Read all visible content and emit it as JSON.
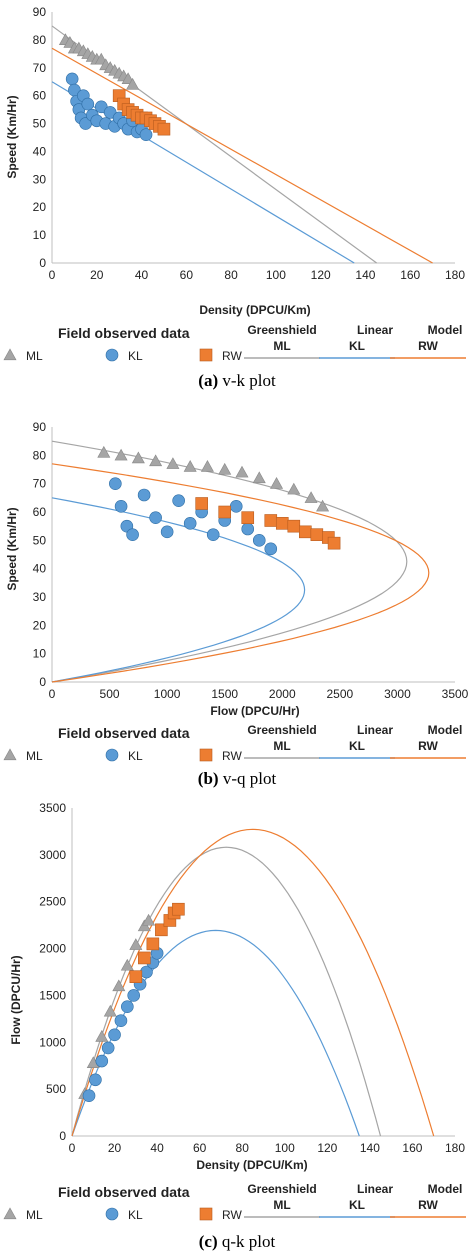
{
  "chart_data": [
    {
      "type": "scatter",
      "caption_label": "(a)",
      "caption_text": "v-k plot",
      "xlabel": "Density (DPCU/Km)",
      "ylabel": "Speed (Km/Hr)",
      "xlim": [
        0,
        180
      ],
      "ylim": [
        0,
        90
      ],
      "xticks": [
        0,
        20,
        40,
        60,
        80,
        100,
        120,
        140,
        160,
        180
      ],
      "yticks": [
        0,
        10,
        20,
        30,
        40,
        50,
        60,
        70,
        80,
        90
      ],
      "series": [
        {
          "name": "ML",
          "kind": "points",
          "marker": "triangle",
          "color": "#a5a5a5",
          "x": [
            6,
            8,
            10,
            12,
            14,
            16,
            18,
            20,
            22,
            24,
            26,
            28,
            30,
            32,
            34,
            36
          ],
          "y": [
            80,
            79,
            77,
            77,
            76,
            75,
            74,
            73,
            73,
            71,
            70,
            69,
            68,
            67,
            66,
            64
          ]
        },
        {
          "name": "KL",
          "kind": "points",
          "marker": "circle",
          "color": "#5b9bd5",
          "x": [
            9,
            10,
            11,
            12,
            13,
            14,
            15,
            16,
            18,
            20,
            22,
            24,
            26,
            28,
            30,
            32,
            34,
            36,
            38,
            40,
            42
          ],
          "y": [
            66,
            62,
            58,
            55,
            52,
            60,
            50,
            57,
            53,
            51,
            56,
            50,
            54,
            49,
            52,
            50,
            48,
            51,
            47,
            48,
            46
          ]
        },
        {
          "name": "RW",
          "kind": "points",
          "marker": "square",
          "color": "#ed7d31",
          "x": [
            30,
            32,
            34,
            36,
            38,
            40,
            42,
            44,
            46,
            48,
            50
          ],
          "y": [
            60,
            57,
            55,
            54,
            53,
            52,
            52,
            51,
            50,
            49,
            48
          ]
        },
        {
          "name": "ML",
          "kind": "line",
          "color": "#a5a5a5",
          "x": [
            0,
            145
          ],
          "y": [
            85,
            0
          ]
        },
        {
          "name": "KL",
          "kind": "line",
          "color": "#5b9bd5",
          "x": [
            0,
            135
          ],
          "y": [
            65,
            0
          ]
        },
        {
          "name": "RW",
          "kind": "line",
          "color": "#ed7d31",
          "x": [
            0,
            170
          ],
          "y": [
            77,
            0
          ]
        }
      ]
    },
    {
      "type": "scatter",
      "caption_label": "(b)",
      "caption_text": "v-q plot",
      "xlabel": "Flow (DPCU/Hr)",
      "ylabel": "Speed (Km/Hr)",
      "xlim": [
        0,
        3500
      ],
      "ylim": [
        0,
        90
      ],
      "xticks": [
        0,
        500,
        1000,
        1500,
        2000,
        2500,
        3000,
        3500
      ],
      "yticks": [
        0,
        10,
        20,
        30,
        40,
        50,
        60,
        70,
        80,
        90
      ],
      "series": [
        {
          "name": "ML",
          "kind": "points",
          "marker": "triangle",
          "color": "#a5a5a5",
          "x": [
            450,
            600,
            750,
            900,
            1050,
            1200,
            1350,
            1500,
            1650,
            1800,
            1950,
            2100,
            2250,
            2350
          ],
          "y": [
            81,
            80,
            79,
            78,
            77,
            76,
            76,
            75,
            74,
            72,
            70,
            68,
            65,
            62
          ]
        },
        {
          "name": "KL",
          "kind": "points",
          "marker": "circle",
          "color": "#5b9bd5",
          "x": [
            550,
            600,
            650,
            700,
            800,
            900,
            1000,
            1100,
            1200,
            1300,
            1400,
            1500,
            1600,
            1700,
            1800,
            1900
          ],
          "y": [
            70,
            62,
            55,
            52,
            66,
            58,
            53,
            64,
            56,
            60,
            52,
            57,
            62,
            54,
            50,
            47
          ]
        },
        {
          "name": "RW",
          "kind": "points",
          "marker": "square",
          "color": "#ed7d31",
          "x": [
            1300,
            1500,
            1700,
            1900,
            2000,
            2100,
            2200,
            2300,
            2400,
            2450
          ],
          "y": [
            63,
            60,
            58,
            57,
            56,
            55,
            53,
            52,
            51,
            49
          ]
        },
        {
          "name": "ML",
          "kind": "curve",
          "color": "#a5a5a5",
          "vf": 85,
          "kj": 145
        },
        {
          "name": "KL",
          "kind": "curve",
          "color": "#5b9bd5",
          "vf": 65,
          "kj": 135
        },
        {
          "name": "RW",
          "kind": "curve",
          "color": "#ed7d31",
          "vf": 77,
          "kj": 170
        }
      ]
    },
    {
      "type": "scatter",
      "caption_label": "(c)",
      "caption_text": "q-k plot",
      "xlabel": "Density (DPCU/Km)",
      "ylabel": "Flow (DPCU/Hr)",
      "xlim": [
        0,
        180
      ],
      "ylim": [
        0,
        3500
      ],
      "xticks": [
        0,
        20,
        40,
        60,
        80,
        100,
        120,
        140,
        160,
        180
      ],
      "yticks": [
        0,
        500,
        1000,
        1500,
        2000,
        2500,
        3000,
        3500
      ],
      "series": [
        {
          "name": "ML",
          "kind": "points",
          "marker": "triangle",
          "color": "#a5a5a5",
          "x": [
            6,
            10,
            14,
            18,
            22,
            26,
            30,
            34,
            36
          ],
          "y": [
            450,
            780,
            1060,
            1330,
            1600,
            1820,
            2040,
            2240,
            2300
          ]
        },
        {
          "name": "KL",
          "kind": "points",
          "marker": "circle",
          "color": "#5b9bd5",
          "x": [
            8,
            11,
            14,
            17,
            20,
            23,
            26,
            29,
            32,
            35,
            38,
            40
          ],
          "y": [
            430,
            600,
            800,
            940,
            1080,
            1230,
            1380,
            1500,
            1620,
            1750,
            1850,
            1950
          ]
        },
        {
          "name": "RW",
          "kind": "points",
          "marker": "square",
          "color": "#ed7d31",
          "x": [
            30,
            34,
            38,
            42,
            46,
            48,
            50
          ],
          "y": [
            1700,
            1900,
            2050,
            2200,
            2300,
            2380,
            2420
          ]
        },
        {
          "name": "ML",
          "kind": "parabola",
          "color": "#a5a5a5",
          "vf": 85,
          "kj": 145
        },
        {
          "name": "KL",
          "kind": "parabola",
          "color": "#5b9bd5",
          "vf": 65,
          "kj": 135
        },
        {
          "name": "RW",
          "kind": "parabola",
          "color": "#ed7d31",
          "vf": 77,
          "kj": 170
        }
      ]
    }
  ],
  "legend": {
    "field_header": "Field observed data",
    "model_header_words": [
      "Greenshield",
      "Linear",
      "Model"
    ],
    "items": [
      "ML",
      "KL",
      "RW"
    ],
    "marker_colors": {
      "ML": "#a5a5a5",
      "KL": "#5b9bd5",
      "RW": "#ed7d31"
    }
  }
}
